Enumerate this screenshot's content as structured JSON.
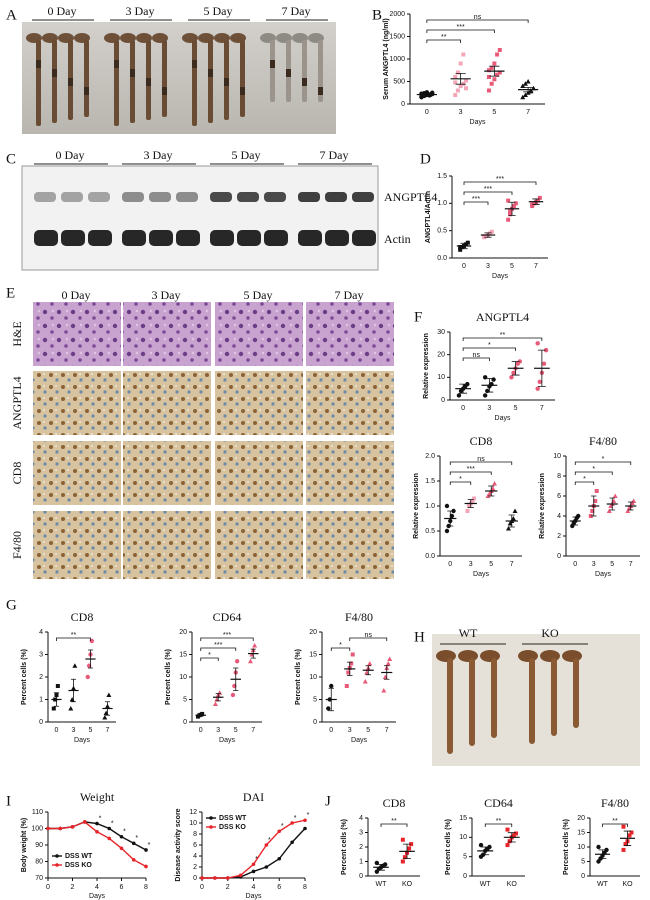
{
  "panel_labels": [
    "A",
    "B",
    "C",
    "D",
    "E",
    "F",
    "G",
    "H",
    "I",
    "J"
  ],
  "photo_a": {
    "labels": [
      "0 Day",
      "3 Day",
      "5 Day",
      "7 Day"
    ]
  },
  "blot": {
    "lanes": [
      "0 Day",
      "3 Day",
      "5 Day",
      "7 Day"
    ],
    "bands": [
      "ANGPTL4",
      "Actin"
    ]
  },
  "histology": {
    "columns": [
      "0 Day",
      "3 Day",
      "5 Day",
      "7 Day"
    ],
    "rows": [
      "H&E",
      "ANGPTL4",
      "CD8",
      "F4/80"
    ]
  },
  "photo_h": {
    "labels": [
      "WT",
      "KO"
    ]
  },
  "chart_data": [
    {
      "type": "dotplot",
      "ylabel": "Serum ANGPTL4 (ng/ml)",
      "xlabel": "Days",
      "categories": [
        "0",
        "3",
        "5",
        "7"
      ],
      "values": [
        210,
        560,
        730,
        320
      ],
      "errors": [
        40,
        120,
        110,
        50
      ],
      "points": [
        [
          150,
          180,
          200,
          210,
          220,
          230,
          240,
          260,
          190,
          250,
          170
        ],
        [
          200,
          300,
          400,
          450,
          520,
          600,
          700,
          900,
          1100,
          350,
          480
        ],
        [
          300,
          450,
          550,
          650,
          700,
          750,
          800,
          900,
          1100,
          1200,
          600
        ],
        [
          150,
          200,
          250,
          300,
          350,
          400,
          450,
          500,
          280
        ]
      ],
      "colors": [
        "#111111",
        "#f4a6b8",
        "#e85a78",
        "#111111"
      ],
      "markers": [
        "circle",
        "square",
        "square",
        "triangle"
      ],
      "ylim": [
        0,
        2000
      ],
      "yticks": [
        0,
        500,
        1000,
        1500,
        2000
      ],
      "brackets": [
        {
          "groups": [
            "0",
            "3"
          ],
          "label": "**"
        },
        {
          "groups": [
            "0",
            "5"
          ],
          "label": "***"
        },
        {
          "groups": [
            "0",
            "7"
          ],
          "label": "ns"
        }
      ]
    },
    {
      "type": "dotplot",
      "ylabel": "ANGPTL4/Actin",
      "xlabel": "Days",
      "categories": [
        "0",
        "3",
        "5",
        "7"
      ],
      "values": [
        0.22,
        0.42,
        0.9,
        1.03
      ],
      "errors": [
        0.05,
        0.04,
        0.12,
        0.05
      ],
      "points": [
        [
          0.15,
          0.2,
          0.22,
          0.25,
          0.28,
          0.2
        ],
        [
          0.38,
          0.4,
          0.42,
          0.45,
          0.48,
          0.4
        ],
        [
          0.7,
          0.8,
          0.9,
          0.95,
          1.0,
          1.05,
          0.85
        ],
        [
          0.95,
          1.0,
          1.02,
          1.05,
          1.1,
          0.98
        ]
      ],
      "colors": [
        "#111111",
        "#f4a6b8",
        "#e85a78",
        "#e85a78"
      ],
      "markers": [
        "square",
        "square",
        "square",
        "square"
      ],
      "ylim": [
        0,
        1.5
      ],
      "yticks": [
        {
          "value": 0,
          "label": "0.0"
        },
        0.5,
        {
          "value": 1,
          "label": "1.0"
        },
        1.5
      ],
      "brackets": [
        {
          "groups": [
            "0",
            "3"
          ],
          "label": "***"
        },
        {
          "groups": [
            "0",
            "5"
          ],
          "label": "***"
        },
        {
          "groups": [
            "0",
            "7"
          ],
          "label": "***"
        }
      ]
    },
    {
      "type": "dotplot",
      "title": "ANGPTL4",
      "ylabel": "Relative expression",
      "xlabel": "Days",
      "categories": [
        "0",
        "3",
        "5",
        "7"
      ],
      "values": [
        5,
        6.5,
        14,
        14
      ],
      "errors": [
        2,
        3,
        3,
        8
      ],
      "points": [
        [
          2,
          4,
          5,
          6,
          7
        ],
        [
          2,
          4,
          6,
          7,
          9,
          10
        ],
        [
          10,
          12,
          14,
          16,
          17
        ],
        [
          5,
          8,
          12,
          16,
          22,
          25
        ]
      ],
      "colors": [
        "#111111",
        "#111111",
        "#e85a78",
        "#e85a78"
      ],
      "markers": [
        "circle",
        "circle",
        "circle",
        "circle"
      ],
      "ylim": [
        0,
        30
      ],
      "yticks": [
        0,
        10,
        20,
        30
      ],
      "brackets": [
        {
          "groups": [
            "0",
            "3"
          ],
          "label": "ns"
        },
        {
          "groups": [
            "0",
            "5"
          ],
          "label": "*"
        },
        {
          "groups": [
            "0",
            "7"
          ],
          "label": "**"
        }
      ]
    },
    {
      "type": "dotplot",
      "title": "CD8",
      "ylabel": "Relative expression",
      "xlabel": "Days",
      "categories": [
        "0",
        "3",
        "5",
        "7"
      ],
      "values": [
        0.75,
        1.05,
        1.3,
        0.7
      ],
      "errors": [
        0.15,
        0.08,
        0.1,
        0.12
      ],
      "points": [
        [
          0.5,
          0.6,
          0.7,
          0.8,
          0.9,
          1.0
        ],
        [
          0.9,
          1.0,
          1.05,
          1.1,
          1.15
        ],
        [
          1.2,
          1.25,
          1.3,
          1.35,
          1.45
        ],
        [
          0.55,
          0.65,
          0.7,
          0.75,
          0.9
        ]
      ],
      "colors": [
        "#111111",
        "#f4a6b8",
        "#e85a78",
        "#111111"
      ],
      "markers": [
        "circle",
        "square",
        "triangle",
        "triangle"
      ],
      "ylim": [
        0,
        2
      ],
      "yticks": [
        {
          "value": 0,
          "label": "0.0"
        },
        0.5,
        {
          "value": 1,
          "label": "1.0"
        },
        1.5,
        {
          "value": 2,
          "label": "2.0"
        }
      ],
      "brackets": [
        {
          "groups": [
            "0",
            "3"
          ],
          "label": "*"
        },
        {
          "groups": [
            "0",
            "5"
          ],
          "label": "***"
        },
        {
          "groups": [
            "0",
            "7"
          ],
          "label": "ns"
        }
      ]
    },
    {
      "type": "dotplot",
      "title": "F4/80",
      "ylabel": "Relative expression",
      "xlabel": "Days",
      "categories": [
        "0",
        "3",
        "5",
        "7"
      ],
      "values": [
        3.5,
        5,
        5.2,
        5
      ],
      "errors": [
        0.4,
        1,
        0.6,
        0.4
      ],
      "points": [
        [
          3,
          3.3,
          3.5,
          3.8,
          4
        ],
        [
          4,
          4.5,
          5,
          5.5,
          6.5
        ],
        [
          4.5,
          5,
          5.2,
          5.5,
          6
        ],
        [
          4.5,
          4.8,
          5,
          5.3,
          5.5
        ]
      ],
      "colors": [
        "#111111",
        "#e85a78",
        "#e85a78",
        "#e85a78"
      ],
      "markers": [
        "circle",
        "square",
        "triangle",
        "triangle"
      ],
      "ylim": [
        0,
        10
      ],
      "yticks": [
        0,
        2,
        4,
        6,
        8,
        10
      ],
      "brackets": [
        {
          "groups": [
            "0",
            "3"
          ],
          "label": "*"
        },
        {
          "groups": [
            "0",
            "5"
          ],
          "label": "*"
        },
        {
          "groups": [
            "0",
            "7"
          ],
          "label": "*"
        }
      ]
    },
    {
      "type": "dotplot",
      "title": "CD8",
      "ylabel": "Percent cells (%)",
      "xlabel": "Days",
      "categories": [
        "0",
        "3",
        "5",
        "7"
      ],
      "values": [
        1,
        1.4,
        2.8,
        0.6
      ],
      "errors": [
        0.3,
        0.5,
        0.4,
        0.3
      ],
      "points": [
        [
          0.6,
          1,
          1.2,
          1.6
        ],
        [
          0.6,
          1,
          1.5,
          2.5
        ],
        [
          2,
          2.5,
          3,
          3.6
        ],
        [
          0.2,
          0.4,
          0.7,
          1.2
        ]
      ],
      "colors": [
        "#111111",
        "#111111",
        "#e85a78",
        "#111111"
      ],
      "markers": [
        "square",
        "triangle",
        "circle",
        "triangle"
      ],
      "ylim": [
        0,
        4
      ],
      "yticks": [
        0,
        1,
        2,
        3,
        4
      ],
      "brackets": [
        {
          "groups": [
            "0",
            "5"
          ],
          "label": "**"
        }
      ]
    },
    {
      "type": "dotplot",
      "title": "CD64",
      "ylabel": "Percent cells (%)",
      "xlabel": "Days",
      "categories": [
        "0",
        "3",
        "5",
        "7"
      ],
      "values": [
        1.5,
        5.5,
        9.5,
        15.2
      ],
      "errors": [
        0.2,
        0.8,
        2.5,
        1
      ],
      "points": [
        [
          1.2,
          1.5,
          1.6,
          1.8
        ],
        [
          4,
          5,
          6,
          6.5
        ],
        [
          6,
          8,
          11,
          13.5
        ],
        [
          13.5,
          15,
          16,
          17
        ]
      ],
      "colors": [
        "#111111",
        "#e85a78",
        "#e85a78",
        "#e85a78"
      ],
      "markers": [
        "square",
        "triangle",
        "circle",
        "triangle"
      ],
      "ylim": [
        0,
        20
      ],
      "yticks": [
        0,
        5,
        10,
        15,
        20
      ],
      "brackets": [
        {
          "groups": [
            "0",
            "3"
          ],
          "label": "*"
        },
        {
          "groups": [
            "0",
            "5"
          ],
          "label": "***"
        },
        {
          "groups": [
            "0",
            "7"
          ],
          "label": "***"
        }
      ]
    },
    {
      "type": "dotplot",
      "title": "F4/80",
      "ylabel": "Percent cells (%)",
      "xlabel": "Days",
      "categories": [
        "0",
        "3",
        "5",
        "7"
      ],
      "values": [
        5,
        11.8,
        11.5,
        11
      ],
      "errors": [
        2.5,
        1.5,
        1,
        1.5
      ],
      "points": [
        [
          3,
          5,
          8
        ],
        [
          8,
          11,
          12,
          13,
          15
        ],
        [
          9,
          11,
          12,
          13
        ],
        [
          7,
          10,
          12,
          13,
          14
        ]
      ],
      "colors": [
        "#111111",
        "#e85a78",
        "#e85a78",
        "#e85a78"
      ],
      "markers": [
        "circle",
        "square",
        "triangle",
        "triangle"
      ],
      "ylim": [
        0,
        20
      ],
      "yticks": [
        0,
        5,
        10,
        15,
        20
      ],
      "brackets": [
        {
          "groups": [
            "0",
            "3"
          ],
          "label": "*"
        },
        {
          "groups": [
            "3",
            "7"
          ],
          "label": "ns"
        }
      ]
    },
    {
      "type": "line",
      "title": "Weight",
      "ylabel": "Body weight (%)",
      "xlabel": "Days",
      "x": [
        0,
        1,
        2,
        3,
        4,
        5,
        6,
        7,
        8
      ],
      "series": [
        {
          "name": "DSS WT",
          "color": "#111111",
          "values": [
            100,
            100,
            101,
            104,
            103,
            100,
            95,
            91,
            87
          ]
        },
        {
          "name": "DSS KO",
          "color": "#e8242a",
          "values": [
            100,
            100,
            101,
            104,
            98,
            94,
            88,
            81,
            77
          ]
        }
      ],
      "xlim": [
        0,
        8
      ],
      "xticks": [
        0,
        2,
        4,
        6,
        8
      ],
      "ylim": [
        70,
        110
      ],
      "yticks": [
        70,
        80,
        90,
        100,
        110
      ],
      "legend": "lower left",
      "annotations": [
        {
          "x": 4,
          "label": "*"
        },
        {
          "x": 5,
          "label": "*"
        },
        {
          "x": 6,
          "label": "*"
        },
        {
          "x": 7,
          "label": "*"
        },
        {
          "x": 8,
          "label": "*"
        }
      ]
    },
    {
      "type": "line",
      "title": "DAI",
      "ylabel": "Disease activity score",
      "xlabel": "Days",
      "x": [
        0,
        1,
        2,
        3,
        4,
        5,
        6,
        7,
        8
      ],
      "series": [
        {
          "name": "DSS WT",
          "color": "#111111",
          "values": [
            0,
            0,
            0,
            0.2,
            1.2,
            2,
            3.5,
            6.5,
            9
          ]
        },
        {
          "name": "DSS KO",
          "color": "#e8242a",
          "values": [
            0,
            0,
            0,
            0.5,
            2.5,
            6,
            8.5,
            10,
            10.5
          ]
        }
      ],
      "xlim": [
        0,
        8
      ],
      "xticks": [
        0,
        2,
        4,
        6,
        8
      ],
      "ylim": [
        0,
        12
      ],
      "yticks": [
        0,
        2,
        4,
        6,
        8,
        10,
        12
      ],
      "legend": "upper left",
      "annotations": [
        {
          "x": 4,
          "label": "*"
        },
        {
          "x": 5,
          "label": "*"
        },
        {
          "x": 6,
          "label": "*"
        },
        {
          "x": 7,
          "label": "*"
        },
        {
          "x": 8,
          "label": "*"
        }
      ]
    },
    {
      "type": "dotplot",
      "title": "CD8",
      "ylabel": "Percent cells (%)",
      "categories": [
        "WT",
        "KO"
      ],
      "values": [
        0.6,
        1.7
      ],
      "errors": [
        0.2,
        0.5
      ],
      "points": [
        [
          0.3,
          0.5,
          0.6,
          0.7,
          0.8,
          0.9
        ],
        [
          1,
          1.3,
          1.6,
          1.9,
          2.2,
          2.5
        ]
      ],
      "colors": [
        "#111111",
        "#e8242a"
      ],
      "markers": [
        "circle",
        "square"
      ],
      "ylim": [
        0,
        4
      ],
      "yticks": [
        0,
        1,
        2,
        3,
        4
      ],
      "brackets": [
        {
          "groups": [
            "WT",
            "KO"
          ],
          "label": "**"
        }
      ]
    },
    {
      "type": "dotplot",
      "title": "CD64",
      "ylabel": "Percent cells (%)",
      "categories": [
        "WT",
        "KO"
      ],
      "values": [
        6.5,
        10
      ],
      "errors": [
        1,
        1.2
      ],
      "points": [
        [
          5,
          5.5,
          6.5,
          7,
          7.5,
          8
        ],
        [
          8,
          9,
          10,
          10.5,
          11,
          12
        ]
      ],
      "colors": [
        "#111111",
        "#e8242a"
      ],
      "markers": [
        "circle",
        "square"
      ],
      "ylim": [
        0,
        15
      ],
      "yticks": [
        0,
        5,
        10,
        15
      ],
      "brackets": [
        {
          "groups": [
            "WT",
            "KO"
          ],
          "label": "**"
        }
      ]
    },
    {
      "type": "dotplot",
      "title": "F4/80",
      "ylabel": "Percent cells (%)",
      "categories": [
        "WT",
        "KO"
      ],
      "values": [
        7.5,
        13
      ],
      "errors": [
        1.5,
        2.5
      ],
      "points": [
        [
          5,
          6,
          7,
          8,
          9,
          10
        ],
        [
          9,
          11,
          12,
          14,
          15,
          17
        ]
      ],
      "colors": [
        "#111111",
        "#e8242a"
      ],
      "markers": [
        "circle",
        "square"
      ],
      "ylim": [
        0,
        20
      ],
      "yticks": [
        0,
        5,
        10,
        15,
        20
      ],
      "brackets": [
        {
          "groups": [
            "WT",
            "KO"
          ],
          "label": "**"
        }
      ]
    }
  ]
}
